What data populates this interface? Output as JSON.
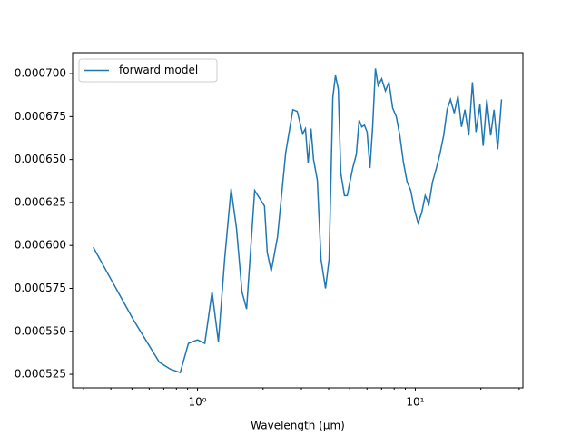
{
  "chart_data": {
    "type": "line",
    "xlabel": "Wavelength (μm)",
    "xscale": "log",
    "x": [
      0.332,
      0.506,
      0.668,
      0.75,
      0.833,
      0.908,
      1.0,
      1.08,
      1.166,
      1.247,
      1.334,
      1.426,
      1.51,
      1.6,
      1.68,
      1.83,
      2.03,
      2.09,
      2.18,
      2.33,
      2.54,
      2.74,
      2.87,
      3.04,
      3.13,
      3.22,
      3.32,
      3.41,
      3.55,
      3.69,
      3.87,
      4.02,
      4.18,
      4.3,
      4.43,
      4.55,
      4.73,
      4.87,
      5.01,
      5.16,
      5.36,
      5.52,
      5.68,
      5.84,
      6.01,
      6.19,
      6.37,
      6.56,
      6.75,
      7.01,
      7.29,
      7.57,
      7.87,
      8.18,
      8.49,
      8.83,
      9.17,
      9.53,
      9.9,
      10.3,
      10.7,
      11.1,
      11.55,
      12.0,
      12.5,
      12.96,
      13.5,
      14.0,
      14.5,
      15.1,
      15.7,
      16.3,
      16.9,
      17.6,
      18.3,
      19.0,
      19.8,
      20.5,
      21.3,
      22.2,
      23.0,
      23.9,
      24.9
    ],
    "series": [
      {
        "name": "forward model",
        "color": "#1f77b4",
        "values": [
          0.000599,
          0.000557,
          0.000532,
          0.000528,
          0.000526,
          0.000543,
          0.000545,
          0.000543,
          0.000573,
          0.000544,
          0.000593,
          0.000633,
          0.00061,
          0.000573,
          0.000563,
          0.000632,
          0.000623,
          0.000596,
          0.000585,
          0.000605,
          0.000654,
          0.000679,
          0.000678,
          0.000665,
          0.000668,
          0.000648,
          0.000668,
          0.00065,
          0.000638,
          0.000592,
          0.000575,
          0.000592,
          0.000686,
          0.000699,
          0.000691,
          0.000642,
          0.000629,
          0.000629,
          0.000637,
          0.000645,
          0.000653,
          0.000673,
          0.000669,
          0.00067,
          0.000666,
          0.000645,
          0.000669,
          0.000703,
          0.000693,
          0.000697,
          0.00069,
          0.000695,
          0.00068,
          0.000675,
          0.000664,
          0.000648,
          0.000637,
          0.000632,
          0.000621,
          0.000613,
          0.000619,
          0.000629,
          0.000624,
          0.000637,
          0.000645,
          0.000653,
          0.000664,
          0.000679,
          0.000685,
          0.000677,
          0.000687,
          0.000669,
          0.000679,
          0.000664,
          0.000695,
          0.000666,
          0.000682,
          0.000658,
          0.000685,
          0.000664,
          0.000679,
          0.000656,
          0.000685
        ]
      }
    ],
    "xlim": [
      0.267,
      31.2
    ],
    "ylim": [
      0.0005171,
      0.0007122
    ],
    "xticks": [
      {
        "value": 1,
        "label": "10⁰"
      },
      {
        "value": 10,
        "label": "10¹"
      }
    ],
    "xminorticks": [
      0.3,
      0.4,
      0.5,
      0.6,
      0.7,
      0.8,
      0.9,
      2,
      3,
      4,
      5,
      6,
      7,
      8,
      9,
      20,
      30
    ],
    "yticks": [
      0.000525,
      {
        "value": 0.00055,
        "label": "0.000550"
      },
      0.000575,
      {
        "value": 0.0006,
        "label": "0.000600"
      },
      0.000625,
      {
        "value": 0.00065,
        "label": "0.000650"
      },
      0.000675,
      {
        "value": 0.0007,
        "label": "0.000700"
      }
    ],
    "legend": "upper left",
    "grid": false
  }
}
